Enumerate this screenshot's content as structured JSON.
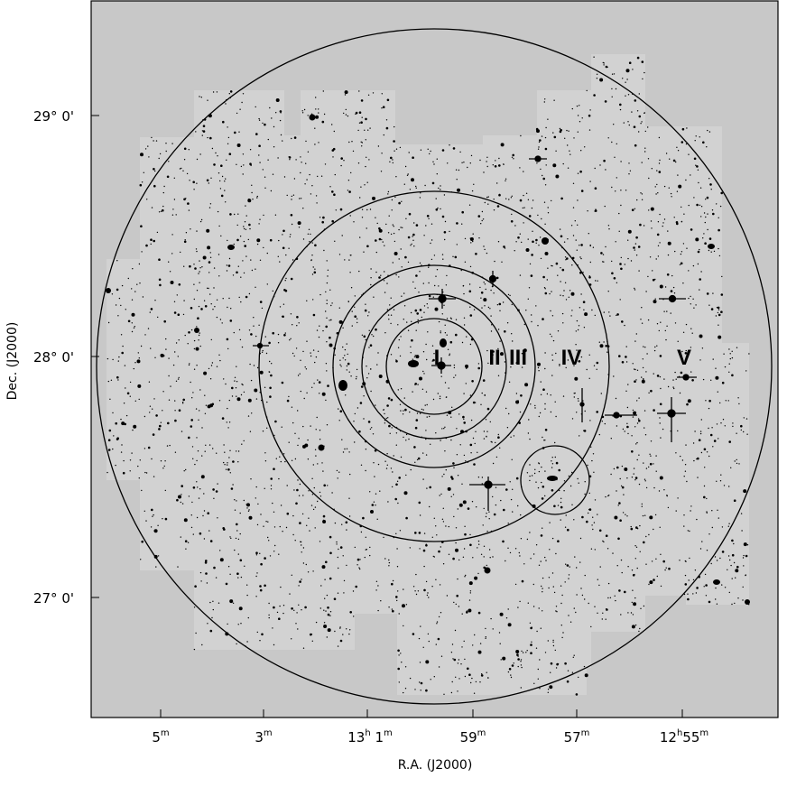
{
  "figure": {
    "x_axis_label": "R.A. (J2000)",
    "y_axis_label": "Dec. (J2000)",
    "x_ticks": [
      {
        "main": "5",
        "sup": "m"
      },
      {
        "main": "3",
        "sup": "m"
      },
      {
        "main": "13",
        "sup": "h",
        "main2": " 1",
        "sup2": "m"
      },
      {
        "main": "59",
        "sup": "m"
      },
      {
        "main": "57",
        "sup": "m"
      },
      {
        "main": "12",
        "sup": "h",
        "main2": "55",
        "sup2": "m"
      }
    ],
    "y_ticks": [
      "29° 0'",
      "28° 0'",
      "27° 0'"
    ],
    "ring_labels": [
      "I",
      "II",
      "III",
      "IV",
      "V"
    ]
  },
  "colors": {
    "background": "#c8c8c8",
    "stars": "#000000",
    "frame": "#000000"
  }
}
